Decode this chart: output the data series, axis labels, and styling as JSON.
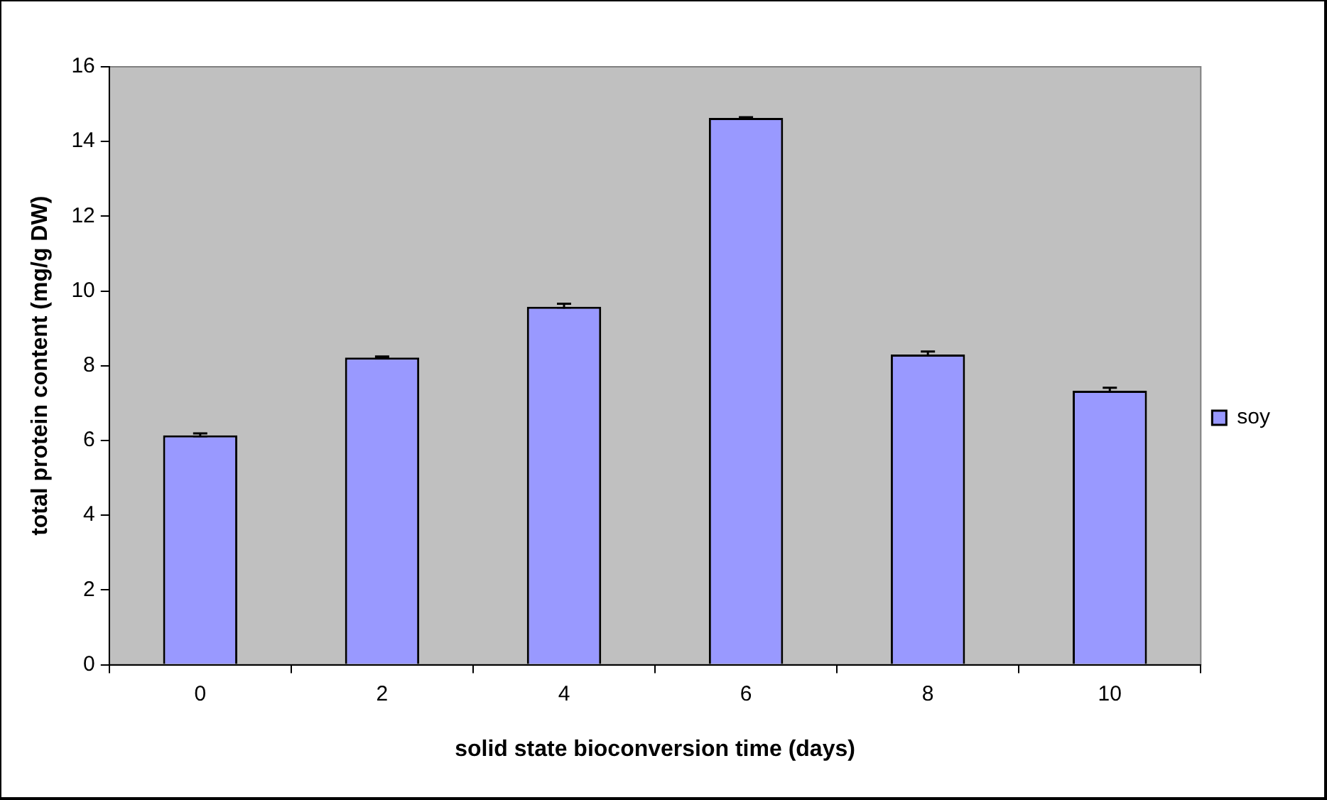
{
  "chart_data": {
    "type": "bar",
    "xlabel": "solid state bioconversion time (days)",
    "ylabel": "total protein content (mg/g DW)",
    "categories": [
      "0",
      "2",
      "4",
      "6",
      "8",
      "10"
    ],
    "series": [
      {
        "name": "soy",
        "color": "#9999ff",
        "values": [
          6.14,
          8.22,
          9.58,
          14.63,
          8.3,
          7.33
        ],
        "errors": [
          0.05,
          0.03,
          0.08,
          0.02,
          0.08,
          0.08
        ]
      }
    ],
    "ylim": [
      0,
      16
    ],
    "yticks": [
      0,
      2,
      4,
      6,
      8,
      10,
      12,
      14,
      16
    ],
    "grid": false,
    "legend": "right"
  }
}
